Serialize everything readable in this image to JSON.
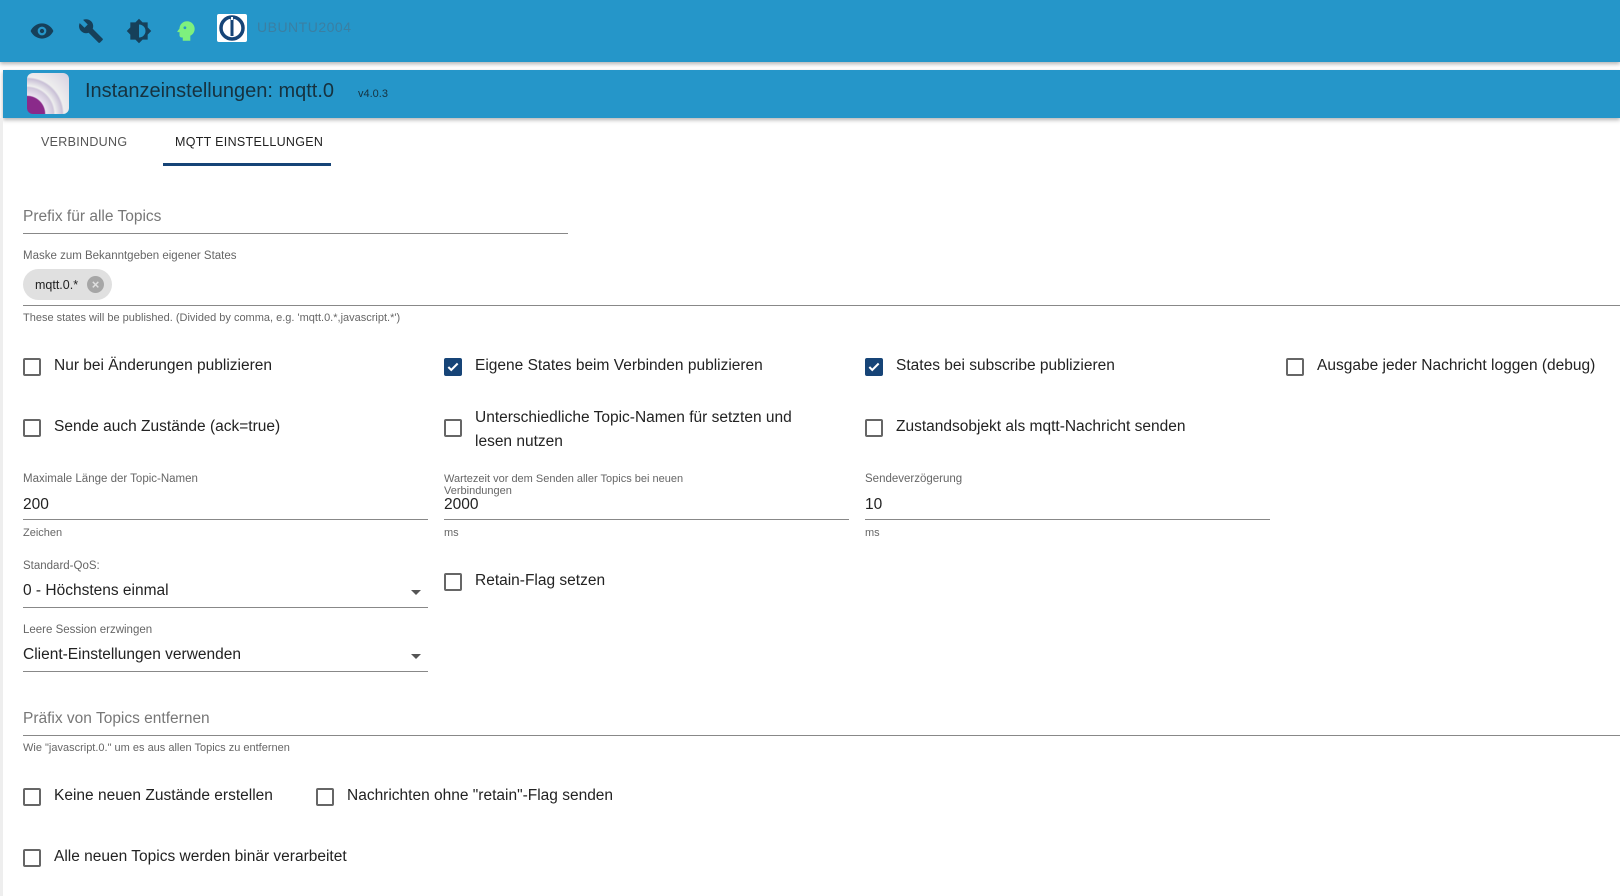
{
  "topbar": {
    "icons": [
      "eye-icon",
      "wrench-icon",
      "brightness-icon",
      "head-icon"
    ],
    "logo": "iobroker-logo",
    "host": "UBUNTU2004",
    "colors": {
      "bar": "#2596c9",
      "accent": "#164477"
    }
  },
  "instance": {
    "title": "Instanzeinstellungen: mqtt.0",
    "version": "v4.0.3"
  },
  "tabs": [
    {
      "label": "VERBINDUNG",
      "active": false
    },
    {
      "label": "MQTT EINSTELLUNGEN",
      "active": true
    }
  ],
  "form": {
    "prefix": {
      "placeholder": "Prefix für alle Topics",
      "value": ""
    },
    "mask": {
      "label": "Maske zum Bekanntgeben eigener States",
      "chips": [
        "mqtt.0.*"
      ],
      "help": "These states will be published. (Divided by comma, e.g. 'mqtt.0.*,javascript.*')"
    },
    "checks1": [
      {
        "label": "Nur bei Änderungen publizieren",
        "checked": false
      },
      {
        "label": "Eigene States beim Verbinden publizieren",
        "checked": true
      },
      {
        "label": "States bei subscribe publizieren",
        "checked": true
      },
      {
        "label": "Ausgabe jeder Nachricht loggen (debug)",
        "checked": false
      }
    ],
    "checks2": [
      {
        "label": "Sende auch Zustände (ack=true)",
        "checked": false
      },
      {
        "label": "Unterschiedliche Topic-Namen für setzten und lesen nutzen",
        "checked": false
      },
      {
        "label": "Zustandsobjekt als mqtt-Nachricht senden",
        "checked": false
      }
    ],
    "numbers": [
      {
        "label": "Maximale Länge der Topic-Namen",
        "value": "200",
        "unit": "Zeichen"
      },
      {
        "label": "Wartezeit vor dem Senden aller Topics bei neuen Verbindungen",
        "value": "2000",
        "unit": "ms"
      },
      {
        "label": "Sendeverzögerung",
        "value": "10",
        "unit": "ms"
      }
    ],
    "qos": {
      "label": "Standard-QoS:",
      "value": "0 - Höchstens einmal"
    },
    "retain": {
      "label": "Retain-Flag setzen",
      "checked": false
    },
    "session": {
      "label": "Leere Session erzwingen",
      "value": "Client-Einstellungen verwenden"
    },
    "removePrefix": {
      "placeholder": "Präfix von Topics entfernen",
      "value": "",
      "help": "Wie \"javascript.0.\" um es aus allen Topics zu entfernen"
    },
    "checks3": [
      {
        "label": "Keine neuen Zustände erstellen",
        "checked": false
      },
      {
        "label": "Nachrichten ohne \"retain\"-Flag senden",
        "checked": false
      },
      {
        "label": "Alle neuen Topics werden binär verarbeitet",
        "checked": false
      }
    ]
  }
}
